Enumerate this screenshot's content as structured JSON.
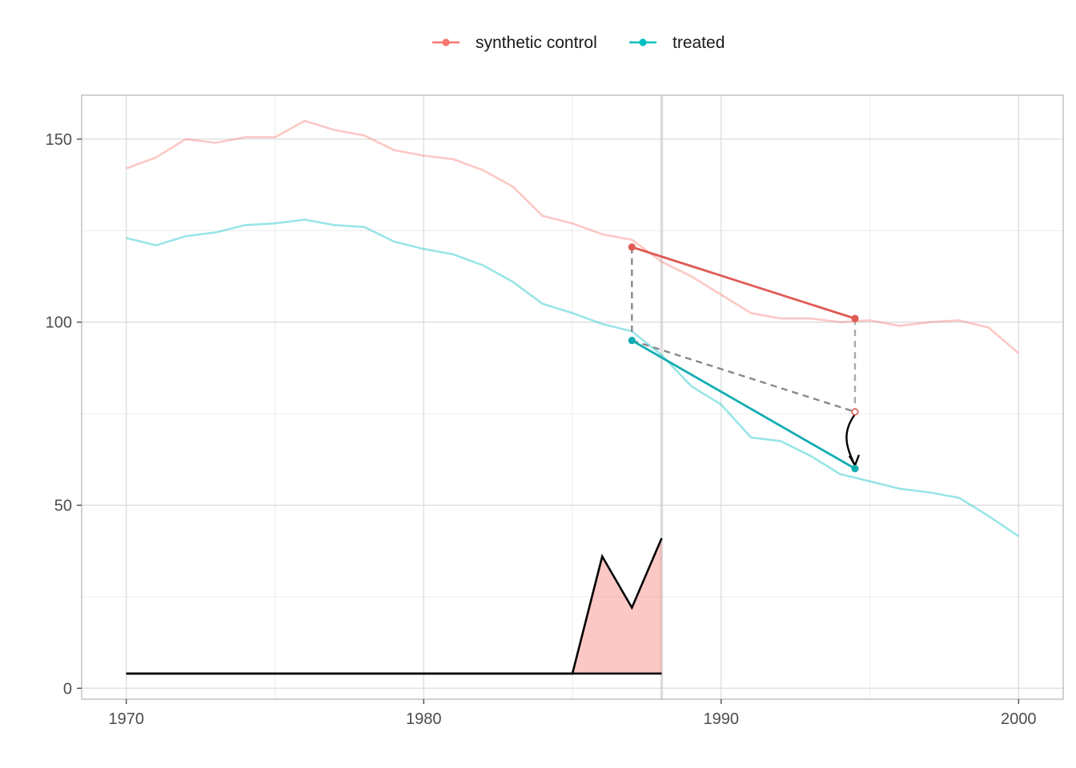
{
  "chart_data": {
    "type": "line",
    "xlim": [
      1968.5,
      2001.5
    ],
    "ylim": [
      -3,
      162
    ],
    "grid": true,
    "legend_position": "top",
    "x_ticks": [
      1970,
      1980,
      1990,
      2000
    ],
    "x_tick_labels": [
      "1970",
      "1980",
      "1990",
      "2000"
    ],
    "y_ticks": [
      0,
      50,
      100,
      150
    ],
    "y_tick_labels": [
      "0",
      "50",
      "100",
      "150"
    ],
    "treatment_year": 1988,
    "series": [
      {
        "name": "synthetic control",
        "color": "#F8766D",
        "x": [
          1970,
          1971,
          1972,
          1973,
          1974,
          1975,
          1976,
          1977,
          1978,
          1979,
          1980,
          1981,
          1982,
          1983,
          1984,
          1985,
          1986,
          1987,
          1988,
          1989,
          1990,
          1991,
          1992,
          1993,
          1994,
          1995,
          1996,
          1997,
          1998,
          1999,
          2000
        ],
        "values": [
          142,
          145,
          150,
          149,
          150.5,
          150.5,
          155,
          152.5,
          151,
          147,
          145.5,
          144.5,
          141.5,
          137,
          129,
          127,
          124,
          122.5,
          116.5,
          112.5,
          107.5,
          102.5,
          101,
          101,
          100,
          100.5,
          99,
          100,
          100.5,
          98.5,
          91.5
        ]
      },
      {
        "name": "treated",
        "color": "#00BFC4",
        "x": [
          1970,
          1971,
          1972,
          1973,
          1974,
          1975,
          1976,
          1977,
          1978,
          1979,
          1980,
          1981,
          1982,
          1983,
          1984,
          1985,
          1986,
          1987,
          1988,
          1989,
          1990,
          1991,
          1992,
          1993,
          1994,
          1995,
          1996,
          1997,
          1998,
          1999,
          2000
        ],
        "values": [
          123,
          121,
          123.5,
          124.5,
          126.5,
          127,
          128,
          126.5,
          126,
          122,
          120,
          118.5,
          115.5,
          111,
          105,
          102.5,
          99.5,
          97.5,
          91,
          82.5,
          77.5,
          68.5,
          67.5,
          63.5,
          58.5,
          56.5,
          54.5,
          53.5,
          52,
          47,
          41.5
        ]
      }
    ],
    "highlight": {
      "synthetic_points": [
        {
          "x": 1987,
          "y": 120.5
        },
        {
          "x": 1994.5,
          "y": 101
        }
      ],
      "treated_points": [
        {
          "x": 1987,
          "y": 95
        },
        {
          "x": 1994.5,
          "y": 60
        }
      ],
      "counterfactual_point": {
        "x": 1994.5,
        "y": 75.5
      },
      "synthetic_color": "#E05A55",
      "treated_color": "#14ADB2",
      "dashed_color": "#888888"
    },
    "weights_area": {
      "x": [
        1970,
        1985,
        1986,
        1987,
        1988
      ],
      "values": [
        4,
        4,
        36,
        22,
        41
      ],
      "baseline": 4,
      "fill_color": "#F8766D"
    }
  }
}
